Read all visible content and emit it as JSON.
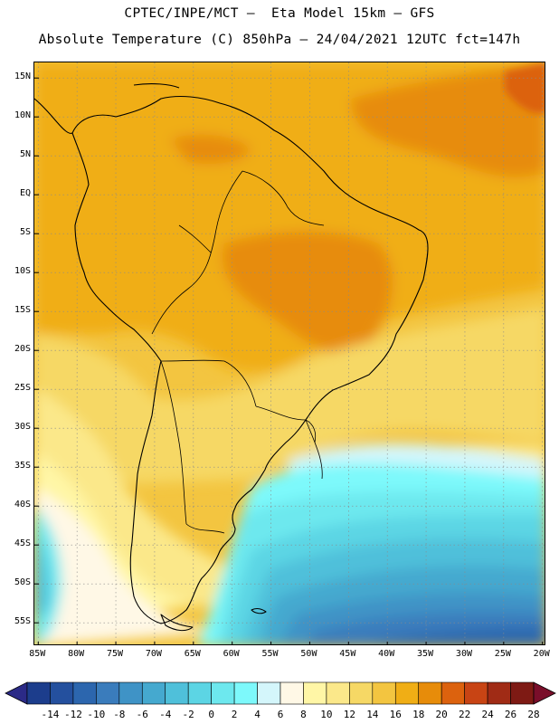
{
  "header": {
    "line1": "CPTEC/INPE/MCT –  Eta Model 15km – GFS",
    "line2": "Absolute Temperature (C) 850hPa – 24/04/2021 12UTC fct=147h"
  },
  "map": {
    "lat_ticks": [
      {
        "value": 15,
        "label": "15N"
      },
      {
        "value": 10,
        "label": "10N"
      },
      {
        "value": 5,
        "label": "5N"
      },
      {
        "value": 0,
        "label": "EQ"
      },
      {
        "value": -5,
        "label": "5S"
      },
      {
        "value": -10,
        "label": "10S"
      },
      {
        "value": -15,
        "label": "15S"
      },
      {
        "value": -20,
        "label": "20S"
      },
      {
        "value": -25,
        "label": "25S"
      },
      {
        "value": -30,
        "label": "30S"
      },
      {
        "value": -35,
        "label": "35S"
      },
      {
        "value": -40,
        "label": "40S"
      },
      {
        "value": -45,
        "label": "45S"
      },
      {
        "value": -50,
        "label": "50S"
      },
      {
        "value": -55,
        "label": "55S"
      }
    ],
    "lon_ticks": [
      {
        "value": -85,
        "label": "85W"
      },
      {
        "value": -80,
        "label": "80W"
      },
      {
        "value": -75,
        "label": "75W"
      },
      {
        "value": -70,
        "label": "70W"
      },
      {
        "value": -65,
        "label": "65W"
      },
      {
        "value": -60,
        "label": "60W"
      },
      {
        "value": -55,
        "label": "55W"
      },
      {
        "value": -50,
        "label": "50W"
      },
      {
        "value": -45,
        "label": "45W"
      },
      {
        "value": -40,
        "label": "40W"
      },
      {
        "value": -35,
        "label": "35W"
      },
      {
        "value": -30,
        "label": "30W"
      },
      {
        "value": -25,
        "label": "25W"
      },
      {
        "value": -20,
        "label": "20W"
      }
    ],
    "lon_range": [
      -85.5,
      -19.5
    ],
    "lat_range": [
      -58,
      17
    ]
  },
  "colorbar": {
    "labels": [
      "-14",
      "-12",
      "-10",
      "-8",
      "-6",
      "-4",
      "-2",
      "0",
      "2",
      "4",
      "6",
      "8",
      "10",
      "12",
      "14",
      "16",
      "18",
      "20",
      "22",
      "24",
      "26",
      "28"
    ],
    "colors": [
      "#1c3d8c",
      "#24509e",
      "#2c66ae",
      "#3a7cbc",
      "#3f93c6",
      "#45a9cf",
      "#4fc0da",
      "#5cd5e4",
      "#6de8ee",
      "#7df9fb",
      "#d4f6fb",
      "#fff8e6",
      "#fff6a6",
      "#fbe88a",
      "#f6d865",
      "#f3c540",
      "#f0ae15",
      "#e78c0a",
      "#dc620e",
      "#c84414",
      "#a02b15",
      "#7e1a14"
    ],
    "under_color": "#2b2a87",
    "over_color": "#7a0e2a"
  }
}
